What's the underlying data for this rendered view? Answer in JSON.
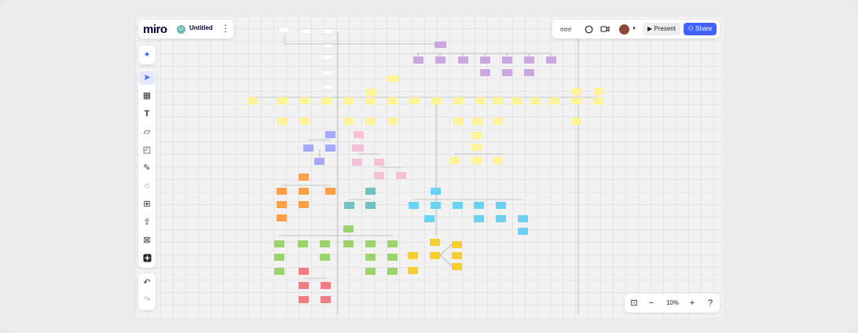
{
  "app": {
    "logo": "miro",
    "board_title": "Untitled",
    "board_initial": "U"
  },
  "header": {
    "present_label": "Present",
    "share_label": "Share",
    "reactions_text": "ಠಠಠ"
  },
  "zoom": {
    "level": "10%"
  },
  "colors": {
    "accent": "#4262ff",
    "sticky_purple": "#c9a7e0",
    "sticky_yellow": "#fff39a",
    "sticky_blue": "#a6a9f5",
    "sticky_pink": "#f5c0d8",
    "sticky_orange": "#f9a04a",
    "sticky_teal": "#6fc2c0",
    "sticky_cyan": "#6bd3f2",
    "sticky_green": "#9cd36a",
    "sticky_red": "#ef7d84",
    "sticky_gold": "#f7cf2d"
  },
  "icons": {
    "magic": "sparkles-icon",
    "select": "cursor-icon",
    "templates": "template-icon",
    "text": "text-icon",
    "sticky": "sticky-note-icon",
    "shapes": "shapes-icon",
    "pen": "pen-icon",
    "comment": "comment-icon",
    "frame": "frame-icon",
    "upload": "upload-icon",
    "more": "apps-icon",
    "add": "plus-icon",
    "undo": "undo-icon",
    "redo": "redo-icon",
    "chat": "chat-icon",
    "video": "video-icon",
    "fit": "fit-screen-icon",
    "zoom_out": "minus-icon",
    "zoom_in": "plus-icon",
    "help": "help-icon"
  }
}
